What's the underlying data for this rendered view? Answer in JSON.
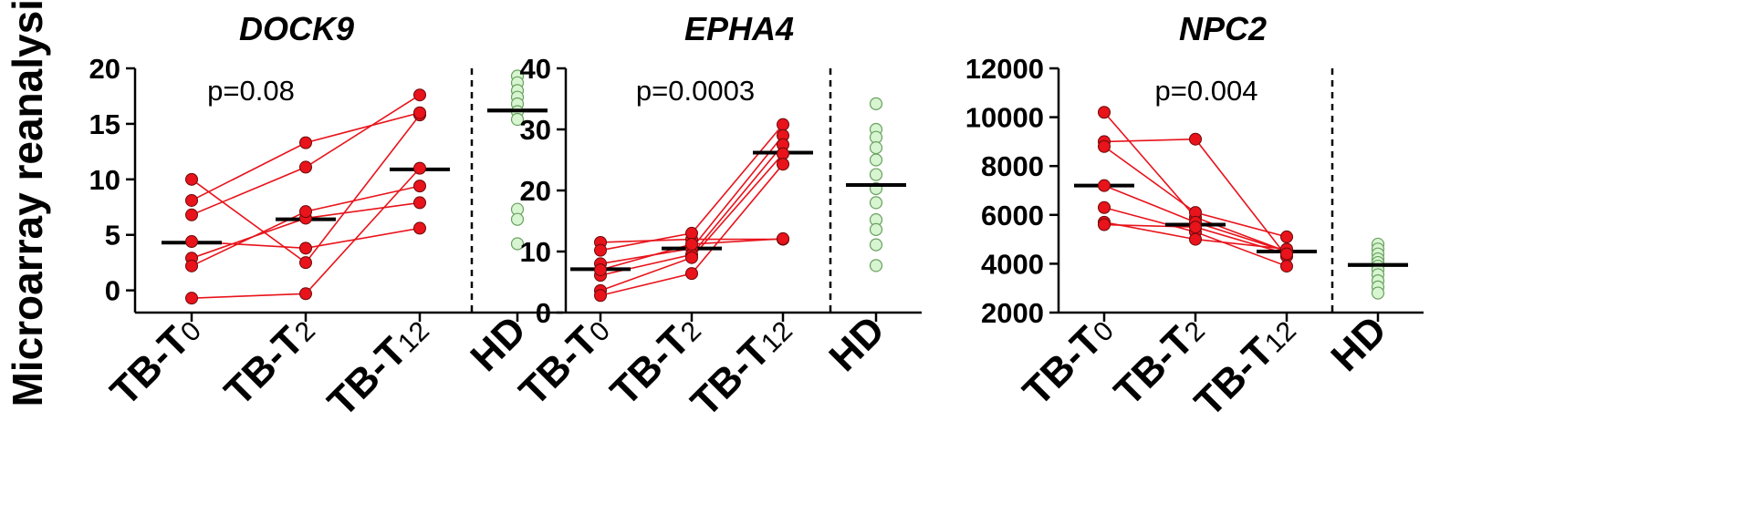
{
  "figure": {
    "ylabel": "Microarray reanalysis"
  },
  "colors": {
    "tb_point": "#e8131b",
    "tb_stroke": "#6b0a0a",
    "tb_line": "#e8131b",
    "hd_point": "#d6f5d0",
    "hd_stroke": "#6aa060",
    "median": "#000000",
    "axis": "#000000"
  },
  "chart_data": [
    {
      "type": "scatter",
      "title": "DOCK9",
      "annotation": "p=0.08",
      "ylim": [
        -2,
        20
      ],
      "yticks": [
        0,
        5,
        10,
        15,
        20
      ],
      "ytick_labels": [
        "0",
        "5",
        "10",
        "15",
        "20"
      ],
      "categories": [
        {
          "main": "TB-T",
          "sub": "0"
        },
        {
          "main": "TB-T",
          "sub": "2"
        },
        {
          "main": "TB-T",
          "sub": "12"
        },
        {
          "main": "HD",
          "sub": ""
        }
      ],
      "paired": [
        [
          10.0,
          2.5,
          15.8
        ],
        [
          8.1,
          13.3,
          16.0
        ],
        [
          6.8,
          11.1,
          17.6
        ],
        [
          4.4,
          3.8,
          5.6
        ],
        [
          2.9,
          6.5,
          7.9
        ],
        [
          2.2,
          7.1,
          9.4
        ],
        [
          -0.7,
          -0.3,
          11.0
        ]
      ],
      "hd": [
        19.3,
        18.7,
        18.0,
        17.4,
        16.8,
        16.1,
        15.4,
        7.3,
        6.4,
        4.2
      ],
      "medians": [
        4.3,
        6.4,
        10.9,
        16.2
      ]
    },
    {
      "type": "scatter",
      "title": "EPHA4",
      "annotation": "p=0.0003",
      "ylim": [
        0,
        40
      ],
      "yticks": [
        0,
        10,
        20,
        30,
        40
      ],
      "ytick_labels": [
        "0",
        "10",
        "20",
        "30",
        "40"
      ],
      "categories": [
        {
          "main": "TB-T",
          "sub": "0"
        },
        {
          "main": "TB-T",
          "sub": "2"
        },
        {
          "main": "TB-T",
          "sub": "12"
        },
        {
          "main": "HD",
          "sub": ""
        }
      ],
      "paired": [
        [
          11.5,
          12.0,
          12.0
        ],
        [
          10.2,
          13.0,
          30.8
        ],
        [
          8.0,
          10.5,
          29.0
        ],
        [
          6.1,
          9.5,
          27.5
        ],
        [
          3.6,
          9.0,
          26.0
        ],
        [
          2.8,
          6.4,
          24.3
        ],
        [
          7.0,
          11.2,
          12.1
        ]
      ],
      "hd": [
        34.2,
        30.0,
        28.7,
        27.0,
        25.0,
        22.6,
        20.3,
        18.0,
        15.2,
        13.6,
        11.1,
        7.7
      ],
      "medians": [
        7.1,
        10.5,
        26.2,
        20.9
      ]
    },
    {
      "type": "scatter",
      "title": "NPC2",
      "annotation": "p=0.004",
      "ylim": [
        2000,
        12000
      ],
      "yticks": [
        2000,
        4000,
        6000,
        8000,
        10000,
        12000
      ],
      "ytick_labels": [
        "2000",
        "4000",
        "6000",
        "8000",
        "10000",
        "12000"
      ],
      "categories": [
        {
          "main": "TB-T",
          "sub": "0"
        },
        {
          "main": "TB-T",
          "sub": "2"
        },
        {
          "main": "TB-T",
          "sub": "12"
        },
        {
          "main": "HD",
          "sub": ""
        }
      ],
      "paired": [
        [
          10200,
          5900,
          4500
        ],
        [
          9000,
          9100,
          4300
        ],
        [
          8800,
          6100,
          5100
        ],
        [
          7200,
          5700,
          4500
        ],
        [
          6300,
          5300,
          3900
        ],
        [
          5700,
          5000,
          4600
        ],
        [
          5600,
          5500,
          4400
        ]
      ],
      "hd": [
        4800,
        4600,
        4400,
        4200,
        4050,
        3900,
        3750,
        3550,
        3300,
        3050,
        2800
      ],
      "medians": [
        7200,
        5600,
        4500,
        3950
      ]
    }
  ]
}
